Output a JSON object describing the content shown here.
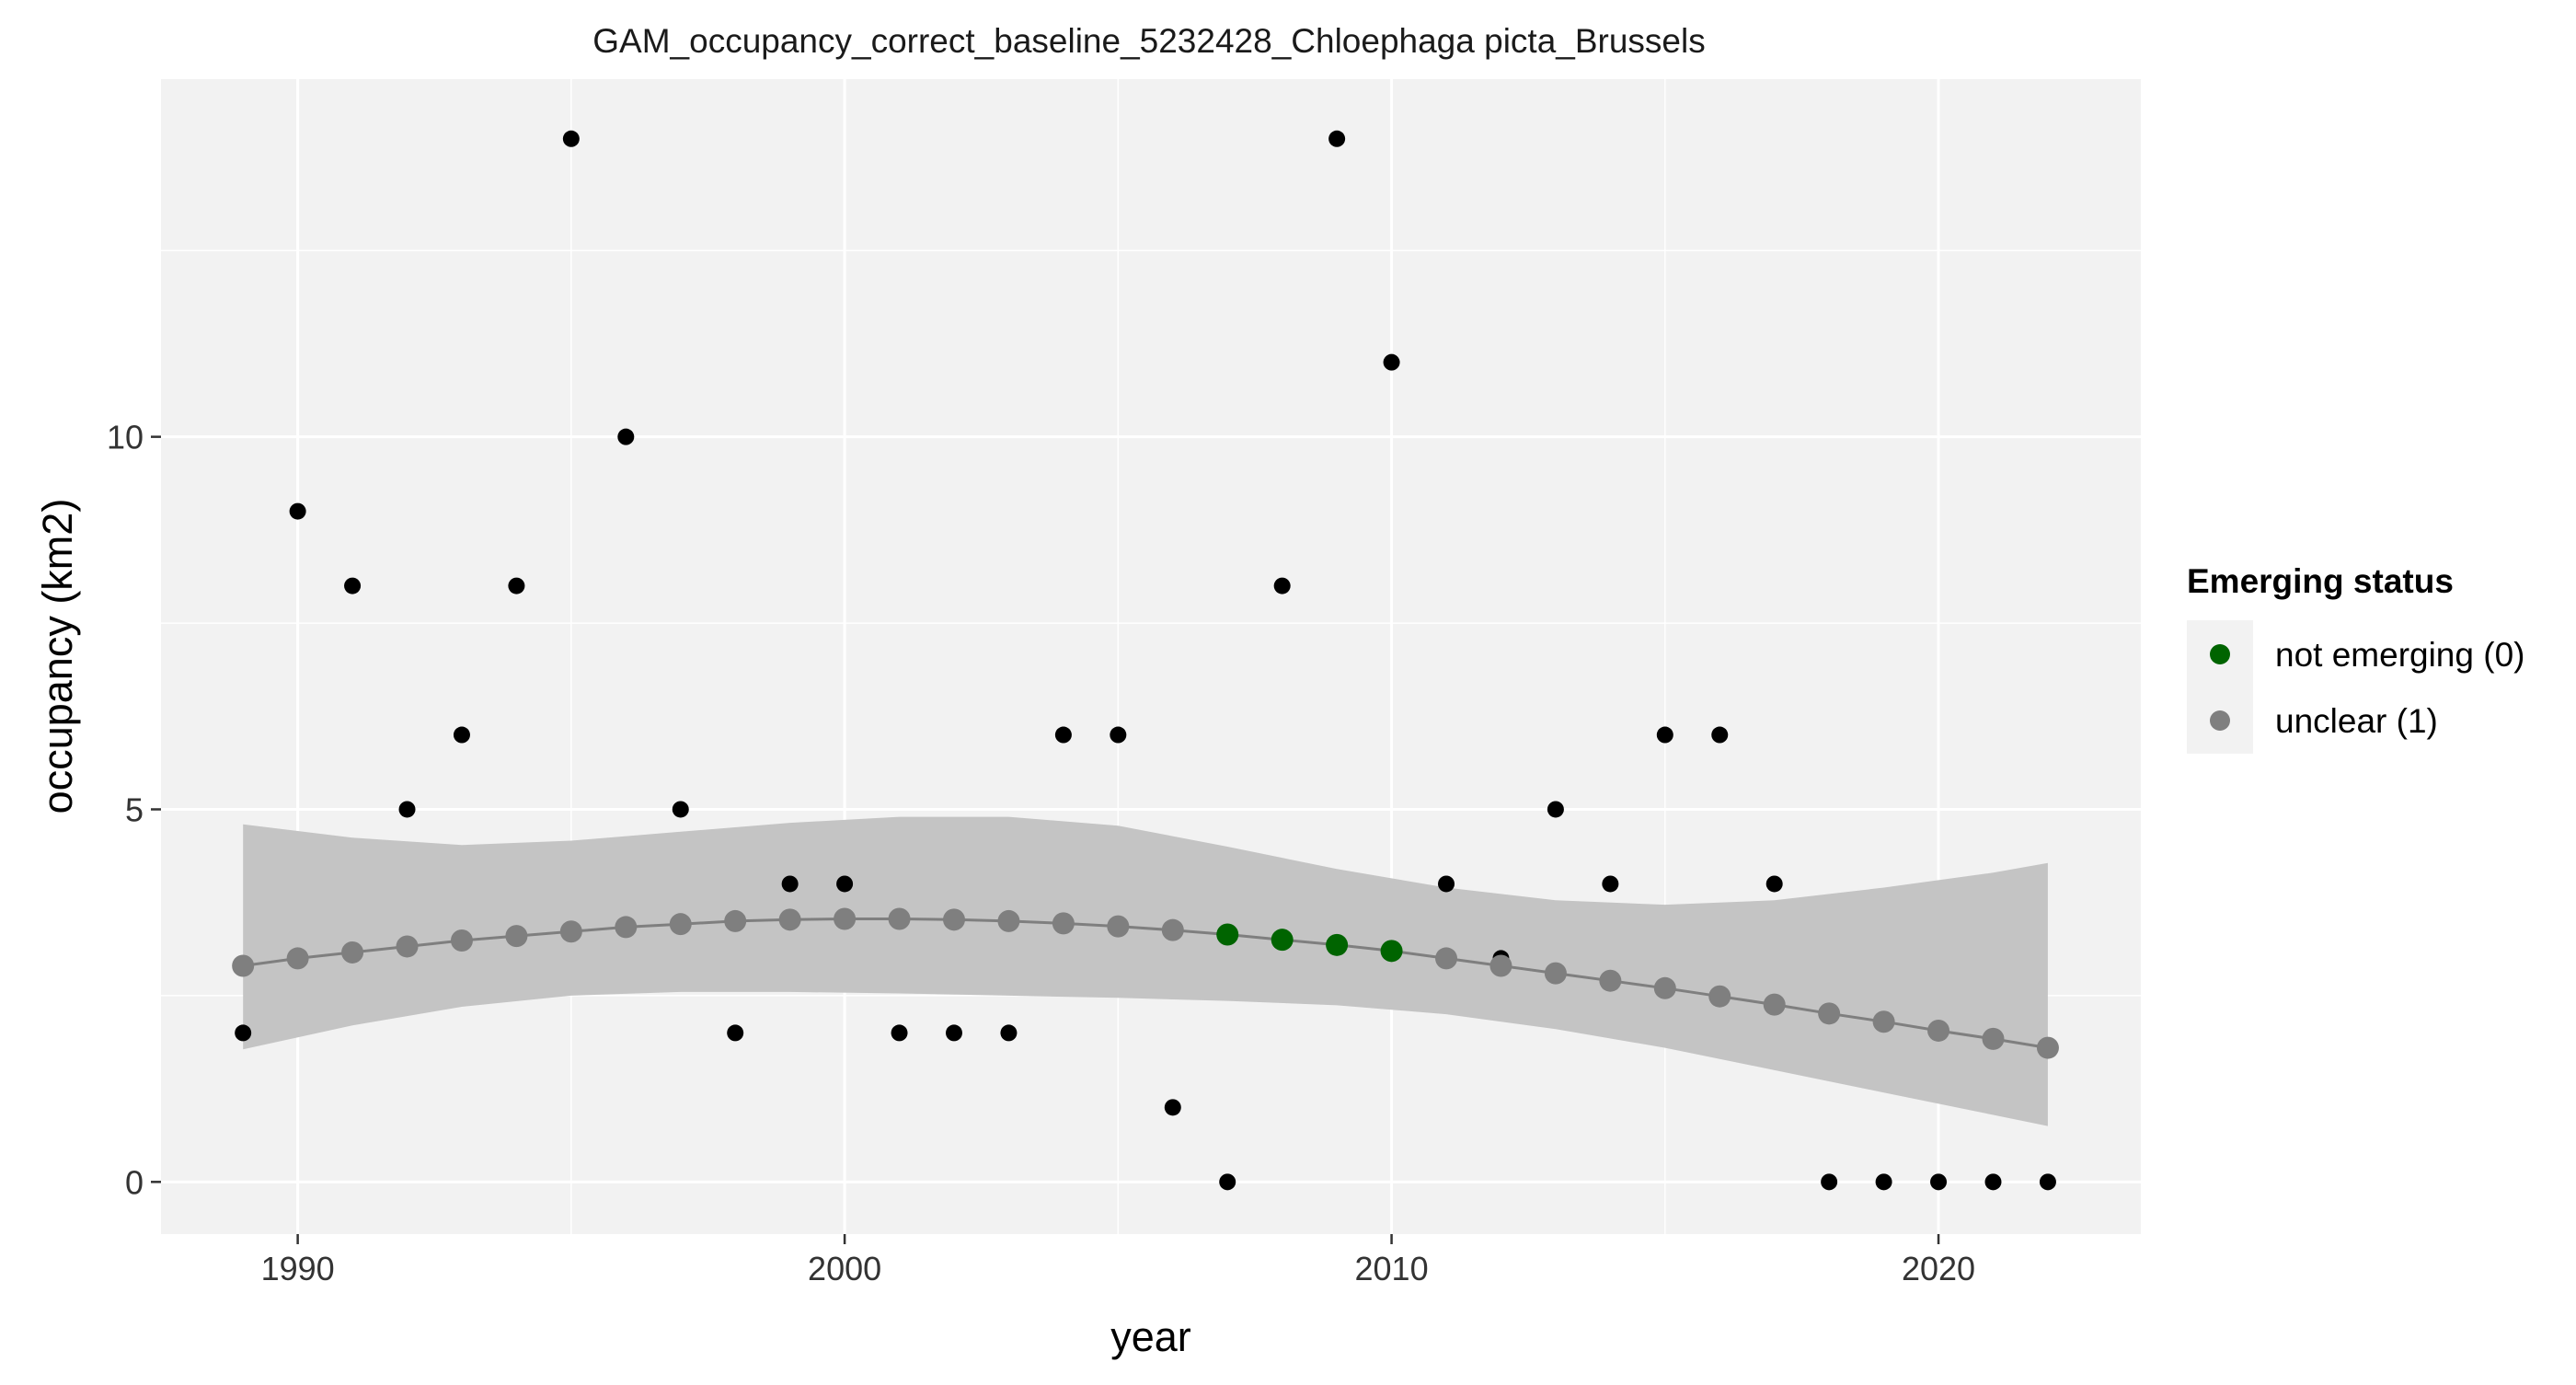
{
  "chart_data": {
    "type": "scatter",
    "title": "GAM_occupancy_correct_baseline_5232428_Chloephaga picta_Brussels",
    "xlabel": "year",
    "ylabel": "occupancy (km2)",
    "xlim": [
      1987.5,
      2023.7
    ],
    "ylim": [
      -0.7,
      14.8
    ],
    "x_ticks": [
      1990,
      2000,
      2010,
      2020
    ],
    "y_ticks": [
      0,
      5,
      10
    ],
    "grid": true,
    "legend": {
      "title": "Emerging status",
      "placement": "right",
      "entries": [
        {
          "label": "not emerging (0)",
          "color": "#006400"
        },
        {
          "label": "unclear (1)",
          "color": "#7f7f7f"
        }
      ]
    },
    "colors": {
      "panel_background": "#f2f2f2",
      "grid": "#ffffff",
      "ribbon": "#c4c4c4",
      "fit_line": "#7f7f7f",
      "observed_points": "#000000",
      "not_emerging": "#006400",
      "unclear": "#7f7f7f"
    },
    "series": [
      {
        "name": "observed",
        "kind": "points",
        "x": [
          1989,
          1990,
          1991,
          1992,
          1993,
          1994,
          1995,
          1996,
          1997,
          1998,
          1999,
          2000,
          2001,
          2002,
          2003,
          2004,
          2005,
          2006,
          2007,
          2008,
          2009,
          2010,
          2011,
          2012,
          2013,
          2014,
          2015,
          2016,
          2017,
          2018,
          2019,
          2020,
          2021,
          2022
        ],
        "y": [
          2,
          9,
          8,
          5,
          6,
          8,
          14,
          10,
          5,
          2,
          4,
          4,
          2,
          2,
          2,
          6,
          6,
          1,
          0,
          8,
          14,
          11,
          4,
          3,
          5,
          4,
          6,
          6,
          4,
          0,
          0,
          0,
          0,
          0
        ]
      },
      {
        "name": "fit",
        "kind": "line+points",
        "x": [
          1989,
          1990,
          1991,
          1992,
          1993,
          1994,
          1995,
          1996,
          1997,
          1998,
          1999,
          2000,
          2001,
          2002,
          2003,
          2004,
          2005,
          2006,
          2007,
          2008,
          2009,
          2010,
          2011,
          2012,
          2013,
          2014,
          2015,
          2016,
          2017,
          2018,
          2019,
          2020,
          2021,
          2022
        ],
        "y": [
          2.9,
          3.0,
          3.08,
          3.16,
          3.24,
          3.3,
          3.36,
          3.42,
          3.46,
          3.5,
          3.52,
          3.53,
          3.53,
          3.52,
          3.5,
          3.47,
          3.43,
          3.38,
          3.32,
          3.25,
          3.18,
          3.1,
          3.0,
          2.9,
          2.8,
          2.7,
          2.6,
          2.49,
          2.38,
          2.26,
          2.15,
          2.03,
          1.92,
          1.8
        ],
        "status": [
          "unclear (1)",
          "unclear (1)",
          "unclear (1)",
          "unclear (1)",
          "unclear (1)",
          "unclear (1)",
          "unclear (1)",
          "unclear (1)",
          "unclear (1)",
          "unclear (1)",
          "unclear (1)",
          "unclear (1)",
          "unclear (1)",
          "unclear (1)",
          "unclear (1)",
          "unclear (1)",
          "unclear (1)",
          "unclear (1)",
          "not emerging (0)",
          "not emerging (0)",
          "not emerging (0)",
          "not emerging (0)",
          "unclear (1)",
          "unclear (1)",
          "unclear (1)",
          "unclear (1)",
          "unclear (1)",
          "unclear (1)",
          "unclear (1)",
          "unclear (1)",
          "unclear (1)",
          "unclear (1)",
          "unclear (1)",
          "unclear (1)"
        ]
      },
      {
        "name": "confidence band",
        "kind": "ribbon",
        "x": [
          1989,
          1991,
          1993,
          1995,
          1997,
          1999,
          2001,
          2003,
          2005,
          2007,
          2009,
          2011,
          2013,
          2015,
          2017,
          2019,
          2021,
          2022
        ],
        "lower": [
          1.78,
          2.1,
          2.35,
          2.5,
          2.55,
          2.55,
          2.53,
          2.5,
          2.47,
          2.43,
          2.37,
          2.25,
          2.05,
          1.8,
          1.5,
          1.2,
          0.9,
          0.75
        ],
        "upper": [
          4.8,
          4.62,
          4.52,
          4.58,
          4.7,
          4.82,
          4.9,
          4.9,
          4.78,
          4.5,
          4.2,
          3.95,
          3.78,
          3.72,
          3.78,
          3.95,
          4.15,
          4.28
        ]
      }
    ]
  }
}
